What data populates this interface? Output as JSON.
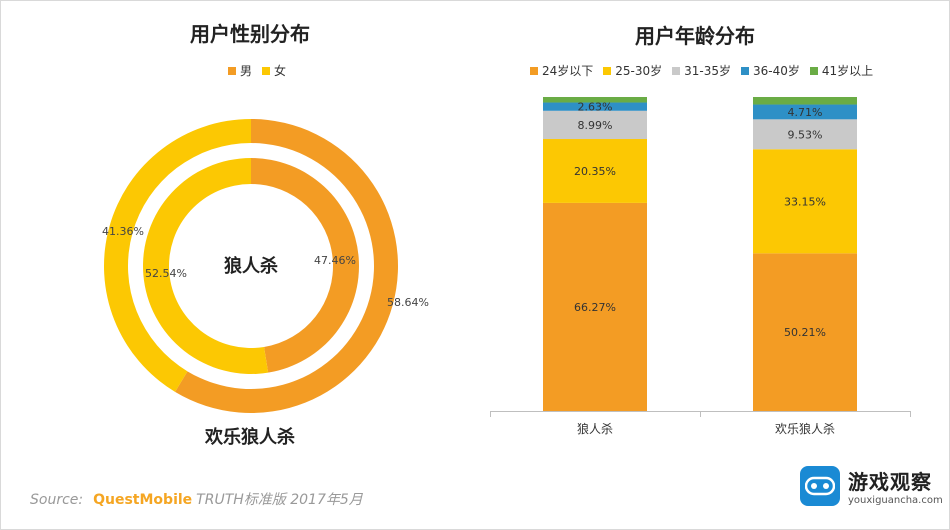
{
  "chart_data": [
    {
      "type": "pie",
      "subtype": "donut",
      "title": "用户性别分布",
      "legend": [
        "男",
        "女"
      ],
      "colors": {
        "男": "#f39c24",
        "女": "#fcc803"
      },
      "series": [
        {
          "name": "狼人杀",
          "ring": "inner",
          "values": {
            "男": 47.46,
            "女": 52.54
          },
          "labels": {
            "男": "47.46%",
            "女": "52.54%"
          }
        },
        {
          "name": "欢乐狼人杀",
          "ring": "outer",
          "values": {
            "男": 58.64,
            "女": 41.36
          },
          "labels": {
            "男": "58.64%",
            "女": "41.36%"
          }
        }
      ]
    },
    {
      "type": "bar",
      "stacked": true,
      "percent": true,
      "title": "用户年龄分布",
      "categories": [
        "狼人杀",
        "欢乐狼人杀"
      ],
      "series": [
        {
          "name": "24岁以下",
          "color": "#f39c24",
          "values": [
            66.27,
            50.21
          ],
          "labels": [
            "66.27%",
            "50.21%"
          ]
        },
        {
          "name": "25-30岁",
          "color": "#fcc803",
          "values": [
            20.35,
            33.15
          ],
          "labels": [
            "20.35%",
            "33.15%"
          ]
        },
        {
          "name": "31-35岁",
          "color": "#c9c9c9",
          "values": [
            8.99,
            9.53
          ],
          "labels": [
            "8.99%",
            "9.53%"
          ]
        },
        {
          "name": "36-40岁",
          "color": "#2e90c6",
          "values": [
            2.63,
            4.71
          ],
          "labels": [
            "2.63%",
            "4.71%"
          ]
        },
        {
          "name": "41岁以上",
          "color": "#6aac45",
          "values": [
            1.76,
            2.4
          ],
          "labels": [
            "",
            ""
          ]
        }
      ],
      "ylim": [
        0,
        100
      ]
    }
  ],
  "footer": {
    "source_label": "Source:",
    "brand": "QuestMobile",
    "standard": "TRUTH标准版 2017年5月"
  },
  "logo": {
    "name": "游戏观察",
    "url": "youxiguancha.com"
  }
}
